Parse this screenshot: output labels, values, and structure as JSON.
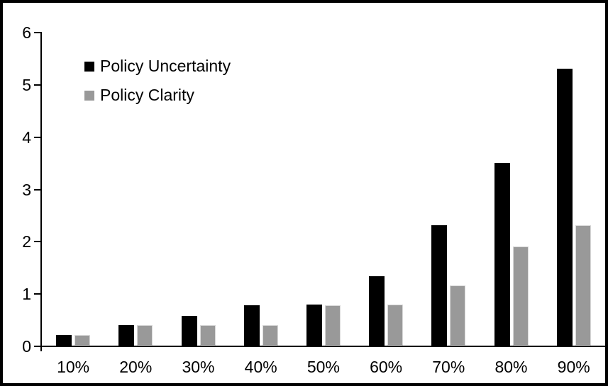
{
  "figure": {
    "background_color": "#ffffff",
    "frame_color": "#000000",
    "text_color": "#000000"
  },
  "chart_data": {
    "type": "bar",
    "title": "",
    "xlabel": "",
    "ylabel": "",
    "categories": [
      "10%",
      "20%",
      "30%",
      "40%",
      "50%",
      "60%",
      "70%",
      "80%",
      "90%"
    ],
    "series": [
      {
        "name": "Policy Uncertainty",
        "color": "#000000",
        "values": [
          0.2,
          0.39,
          0.57,
          0.77,
          0.78,
          1.33,
          2.31,
          3.5,
          5.3
        ]
      },
      {
        "name": "Policy Clarity",
        "color": "#999999",
        "values": [
          0.2,
          0.39,
          0.39,
          0.39,
          0.77,
          0.78,
          1.15,
          1.9,
          2.3
        ]
      }
    ],
    "ylim": [
      0,
      6
    ],
    "yticks": [
      0,
      1,
      2,
      3,
      4,
      5,
      6
    ],
    "grid": false,
    "legend_position": "upper-left-inside"
  }
}
